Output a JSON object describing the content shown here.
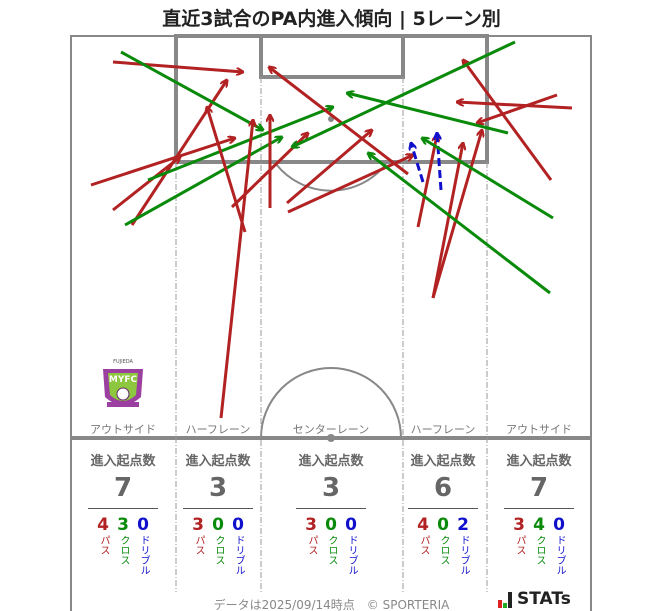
{
  "title": "直近3試合のPA内進入傾向 | 5レーン別",
  "logo": {
    "team_text": "FUJIEDA MYFC"
  },
  "lanes": [
    {
      "label": "アウトサイド",
      "header": "進入起点数",
      "total": "7",
      "pass": "4",
      "cross": "3",
      "dribble": "0"
    },
    {
      "label": "ハーフレーン",
      "header": "進入起点数",
      "total": "3",
      "pass": "3",
      "cross": "0",
      "dribble": "0"
    },
    {
      "label": "センターレーン",
      "header": "進入起点数",
      "total": "3",
      "pass": "3",
      "cross": "0",
      "dribble": "0"
    },
    {
      "label": "ハーフレーン",
      "header": "進入起点数",
      "total": "6",
      "pass": "4",
      "cross": "0",
      "dribble": "2"
    },
    {
      "label": "アウトサイド",
      "header": "進入起点数",
      "total": "7",
      "pass": "3",
      "cross": "4",
      "dribble": "0"
    }
  ],
  "type_labels": {
    "pass": "パス",
    "cross": "クロス",
    "dribble": "ドリブル"
  },
  "colors": {
    "pass": "#b22222",
    "cross": "#0a8a0a",
    "dribble": "#1010cc"
  },
  "footer": "データは2025/09/14時点　© SPORTERIA",
  "brand": "STATs"
}
